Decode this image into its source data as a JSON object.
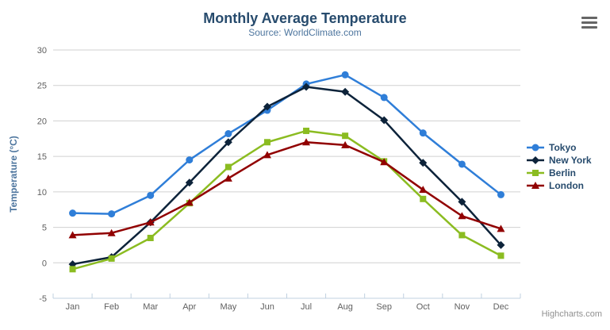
{
  "title": "Monthly Average Temperature",
  "subtitle": "Source: WorldClimate.com",
  "credits": "Highcharts.com",
  "menu_icon": "hamburger-icon",
  "colors": {
    "title": "#274b6d",
    "subtitle": "#4d759e",
    "axis_title": "#4d759e",
    "axis_labels": "#606060",
    "gridline": "#d0d0d0",
    "axis_line": "#c0d0e0",
    "legend_text": "#274b6d",
    "credits_text": "#909090"
  },
  "chart_data": {
    "type": "line",
    "title": "Monthly Average Temperature",
    "subtitle": "Source: WorldClimate.com",
    "categories": [
      "Jan",
      "Feb",
      "Mar",
      "Apr",
      "May",
      "Jun",
      "Jul",
      "Aug",
      "Sep",
      "Oct",
      "Nov",
      "Dec"
    ],
    "xlabel": "",
    "ylabel": "Temperature (°C)",
    "ylim": [
      -5,
      30
    ],
    "ytick_step": 5,
    "grid": true,
    "legend_position": "right-middle",
    "series": [
      {
        "name": "Tokyo",
        "color": "#2f7ed8",
        "marker": "circle",
        "values": [
          7.0,
          6.9,
          9.5,
          14.5,
          18.2,
          21.5,
          25.2,
          26.5,
          23.3,
          18.3,
          13.9,
          9.6
        ]
      },
      {
        "name": "New York",
        "color": "#0d233a",
        "marker": "diamond",
        "values": [
          -0.2,
          0.8,
          5.7,
          11.3,
          17.0,
          22.0,
          24.8,
          24.1,
          20.1,
          14.1,
          8.6,
          2.5
        ]
      },
      {
        "name": "Berlin",
        "color": "#8bbc21",
        "marker": "square",
        "values": [
          -0.9,
          0.6,
          3.5,
          8.4,
          13.5,
          17.0,
          18.6,
          17.9,
          14.3,
          9.0,
          3.9,
          1.0
        ]
      },
      {
        "name": "London",
        "color": "#910000",
        "marker": "triangle",
        "values": [
          3.9,
          4.2,
          5.7,
          8.5,
          11.9,
          15.2,
          17.0,
          16.6,
          14.2,
          10.3,
          6.6,
          4.8
        ]
      }
    ]
  }
}
